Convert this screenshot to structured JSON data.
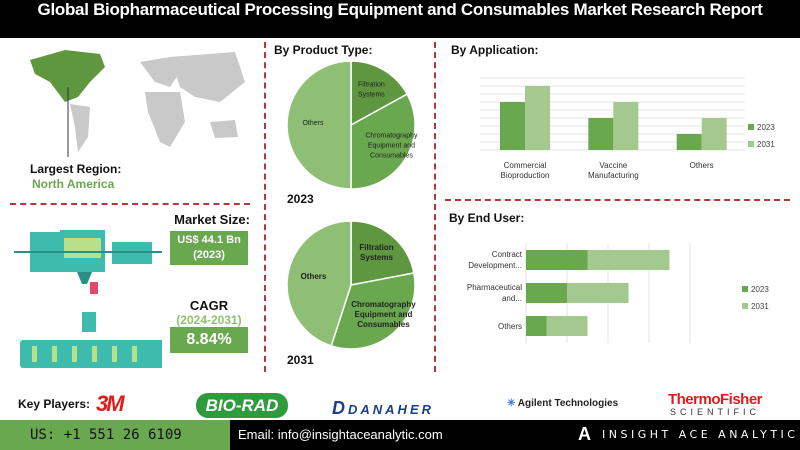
{
  "title": "Global Biopharmaceutical Processing Equipment and Consumables Market Research Report",
  "region": {
    "label": "Largest Region:",
    "value": "North America"
  },
  "market_size": {
    "label": "Market Size:",
    "value": "US$ 44.1 Bn",
    "year": "(2023)"
  },
  "cagr": {
    "label": "CAGR",
    "period": "(2024-2031)",
    "value": "8.84%"
  },
  "colors": {
    "dark_green": "#5f9640",
    "mid_green": "#6aa84f",
    "light_green": "#a4c98e",
    "others_green": "#8fbf74",
    "divider": "#b03a3a"
  },
  "chart_data": [
    {
      "type": "pie",
      "title": "By Product Type:",
      "caption": "2023",
      "slices": [
        {
          "label": "Filtration Systems",
          "value": 17
        },
        {
          "label": "Chromatography Equipment and Consumables",
          "value": 33
        },
        {
          "label": "Others",
          "value": 50
        }
      ]
    },
    {
      "type": "pie",
      "caption": "2031",
      "slices": [
        {
          "label": "Filtration Systems",
          "value": 22
        },
        {
          "label": "Chromatography Equipment and Consumables",
          "value": 33
        },
        {
          "label": "Others",
          "value": 45
        }
      ]
    },
    {
      "type": "bar",
      "title": "By  Application:",
      "categories": [
        "Commercial Bioproduction",
        "Vaccine Manufacturing",
        "Others"
      ],
      "series": [
        {
          "name": "2023",
          "values": [
            6,
            4,
            2
          ]
        },
        {
          "name": "2031",
          "values": [
            8,
            6,
            4
          ]
        }
      ],
      "ylim": [
        0,
        9
      ],
      "grid": true,
      "legend": "right"
    },
    {
      "type": "bar",
      "orientation": "horizontal",
      "stacked": true,
      "title": "By End User:",
      "categories": [
        "Contract Development...",
        "Pharmaceutical and...",
        "Others"
      ],
      "series": [
        {
          "name": "2023",
          "values": [
            1.5,
            1.0,
            0.5
          ]
        },
        {
          "name": "2031",
          "values": [
            2.0,
            1.5,
            1.0
          ]
        }
      ],
      "xlim": [
        0,
        4
      ],
      "grid": true,
      "legend": "right"
    }
  ],
  "key_players": {
    "label": "Key Players:",
    "companies": [
      "3M",
      "BIO-RAD",
      "DANAHER",
      "Agilent Technologies",
      "ThermoFisher",
      "SCIENTIFIC"
    ]
  },
  "footer": {
    "phone": "US: +1 551 26 6109",
    "email": "Email: info@insightaceanalytic.com",
    "brand": "INSIGHT ACE ANALYTIC"
  }
}
